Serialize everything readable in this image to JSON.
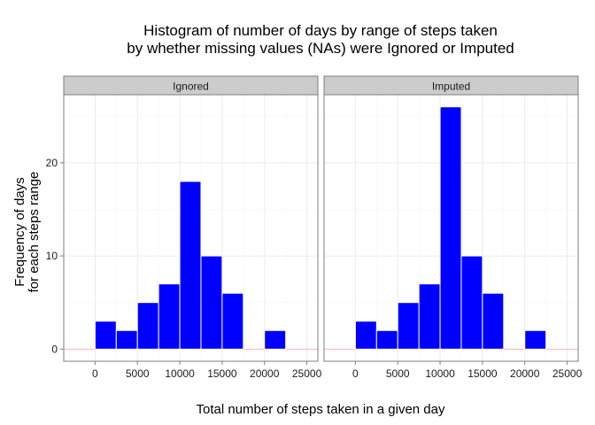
{
  "chart_data": {
    "type": "bar",
    "title": [
      "Histogram of number of days by range of steps taken",
      "by whether missing values (NAs) were Ignored or Imputed"
    ],
    "xlabel": "Total number of steps taken in a given day",
    "ylabel": [
      "Frequency of days",
      "for each steps range"
    ],
    "xlim": [
      -3700,
      26300
    ],
    "ylim": [
      -1.3,
      27.3
    ],
    "xticks": [
      0,
      5000,
      10000,
      15000,
      20000,
      25000
    ],
    "xtick_labels": [
      "0",
      "5000",
      "10000",
      "15000",
      "20000",
      "25000"
    ],
    "yticks": [
      0,
      10,
      20
    ],
    "ytick_labels": [
      "0",
      "10",
      "20"
    ],
    "bin_width": 2500,
    "bin_centers": [
      1250,
      3750,
      6250,
      8750,
      11250,
      13750,
      16250,
      18750,
      21250
    ],
    "grid": true,
    "bar_color": "#0000ff",
    "bar_outline": "#ffffff",
    "zero_line_color": "#ffb6c1",
    "panel_background": "#ffffff",
    "grid_color": "#ebebeb",
    "strip_background": "#cccccc",
    "panels": [
      {
        "name": "Ignored",
        "values": [
          3,
          2,
          5,
          7,
          18,
          10,
          6,
          0,
          2
        ]
      },
      {
        "name": "Imputed",
        "values": [
          3,
          2,
          5,
          7,
          26,
          10,
          6,
          0,
          2
        ]
      }
    ]
  }
}
